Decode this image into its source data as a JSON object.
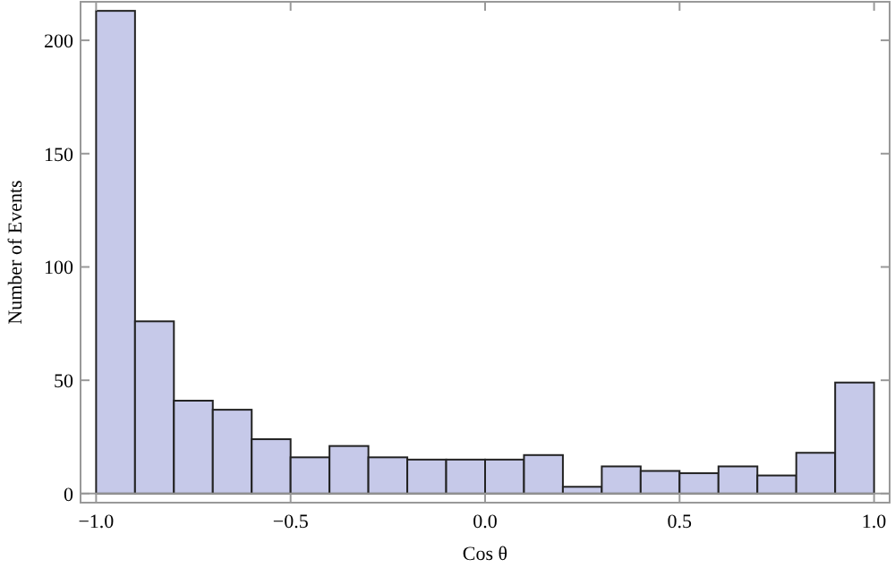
{
  "chart_data": {
    "type": "histogram",
    "xlabel": "Cos θ",
    "ylabel": "Number of Events",
    "bins": [
      -1.0,
      -0.9,
      -0.8,
      -0.7,
      -0.6,
      -0.5,
      -0.4,
      -0.3,
      -0.2,
      -0.1,
      0.0,
      0.1,
      0.2,
      0.3,
      0.4,
      0.5,
      0.6,
      0.7,
      0.8,
      0.9,
      1.0
    ],
    "values": [
      213,
      76,
      41,
      37,
      24,
      16,
      21,
      16,
      15,
      15,
      15,
      17,
      3,
      12,
      10,
      9,
      12,
      8,
      18,
      49
    ],
    "color": "#c6c9e9",
    "xlim": [
      -1.04,
      1.04
    ],
    "ylim": [
      -4,
      217
    ],
    "xticks": [
      {
        "value": -1,
        "label": "−1.0"
      },
      {
        "value": -0.5,
        "label": "−0.5"
      },
      {
        "value": 0,
        "label": "0.0"
      },
      {
        "value": 0.5,
        "label": "0.5"
      },
      {
        "value": 1,
        "label": "1.0"
      }
    ],
    "yticks": [
      0,
      50,
      100,
      150,
      200
    ]
  }
}
